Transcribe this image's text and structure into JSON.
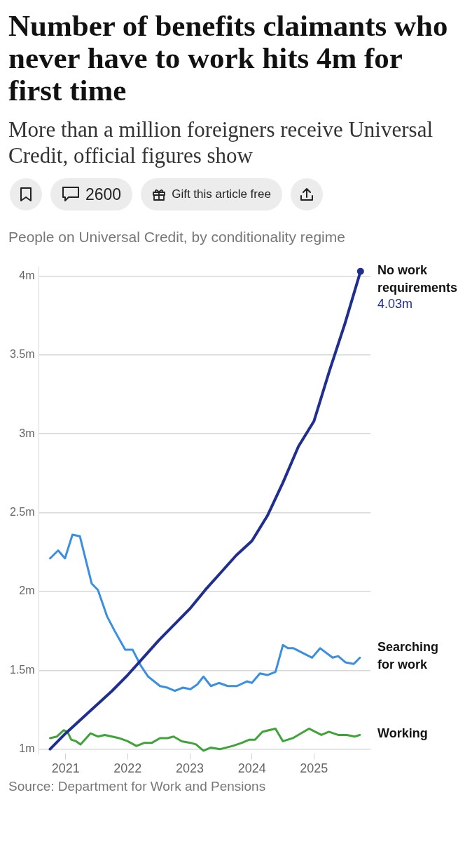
{
  "chart_data": {
    "type": "line",
    "title": "Number of benefits claimants who never have to work hits 4m for first time",
    "subtitle": "More than a million foreigners receive Universal Credit, official figures show",
    "annotations": [
      "2600",
      "Gift this article free",
      "People on Universal Credit, by conditionality regime",
      "Source: Department for Work and Pensions",
      {
        "text": "4.03m",
        "x": 2025.75,
        "y": 4.03
      }
    ],
    "series": [
      {
        "name": "No work requirements",
        "color": "#1f2e8f",
        "x": [
          2020.75,
          2021.0,
          2021.25,
          2021.5,
          2021.75,
          2022.0,
          2022.25,
          2022.5,
          2022.75,
          2023.0,
          2023.25,
          2023.5,
          2023.75,
          2024.0,
          2024.25,
          2024.5,
          2024.75,
          2025.0,
          2025.25,
          2025.5,
          2025.75
        ],
        "values": [
          1.0,
          1.1,
          1.19,
          1.28,
          1.37,
          1.47,
          1.58,
          1.69,
          1.79,
          1.89,
          2.01,
          2.12,
          2.23,
          2.32,
          2.48,
          2.69,
          2.92,
          3.08,
          3.4,
          3.7,
          4.03
        ]
      },
      {
        "name": "Searching for work",
        "color": "#3a8fe0",
        "x": [
          2020.75,
          2020.88,
          2020.99,
          2021.11,
          2021.23,
          2021.42,
          2021.52,
          2021.67,
          2021.79,
          2021.96,
          2022.08,
          2022.21,
          2022.33,
          2022.52,
          2022.64,
          2022.76,
          2022.89,
          2023.01,
          2023.12,
          2023.22,
          2023.34,
          2023.47,
          2023.61,
          2023.76,
          2023.92,
          2024.0,
          2024.13,
          2024.25,
          2024.38,
          2024.5,
          2024.58,
          2024.67,
          2024.97,
          2025.1,
          2025.3,
          2025.39,
          2025.51,
          2025.64,
          2025.74
        ],
        "values": [
          2.21,
          2.26,
          2.21,
          2.36,
          2.35,
          2.05,
          2.01,
          1.84,
          1.75,
          1.63,
          1.63,
          1.53,
          1.46,
          1.4,
          1.39,
          1.37,
          1.39,
          1.38,
          1.41,
          1.46,
          1.4,
          1.42,
          1.4,
          1.4,
          1.43,
          1.42,
          1.48,
          1.47,
          1.49,
          1.66,
          1.64,
          1.64,
          1.58,
          1.64,
          1.58,
          1.59,
          1.55,
          1.54,
          1.58
        ]
      },
      {
        "name": "Working",
        "color": "#3fa33a",
        "x": [
          2020.75,
          2020.86,
          2020.97,
          2021.03,
          2021.09,
          2021.17,
          2021.24,
          2021.4,
          2021.52,
          2021.63,
          2021.75,
          2021.86,
          2022.0,
          2022.14,
          2022.27,
          2022.39,
          2022.52,
          2022.64,
          2022.74,
          2022.87,
          2023.01,
          2023.1,
          2023.22,
          2023.34,
          2023.49,
          2023.69,
          2023.84,
          2023.96,
          2024.05,
          2024.17,
          2024.27,
          2024.38,
          2024.5,
          2024.66,
          2024.92,
          2025.12,
          2025.24,
          2025.39,
          2025.53,
          2025.66,
          2025.74
        ],
        "values": [
          1.07,
          1.08,
          1.12,
          1.11,
          1.06,
          1.05,
          1.03,
          1.1,
          1.08,
          1.09,
          1.08,
          1.07,
          1.05,
          1.02,
          1.04,
          1.04,
          1.07,
          1.07,
          1.08,
          1.05,
          1.04,
          1.03,
          0.99,
          1.01,
          1.0,
          1.02,
          1.04,
          1.06,
          1.06,
          1.11,
          1.12,
          1.13,
          1.05,
          1.07,
          1.13,
          1.09,
          1.11,
          1.09,
          1.09,
          1.08,
          1.09
        ]
      }
    ],
    "xlim": [
      2020.57,
      2025.91
    ],
    "xticks": [
      2021,
      2022,
      2023,
      2024,
      2025
    ],
    "ylim": [
      0.97,
      4.06
    ],
    "yticks": [
      {
        "value": 1,
        "label": "1m"
      },
      {
        "value": 1.5,
        "label": "1.5m"
      },
      {
        "value": 2,
        "label": "2m"
      },
      {
        "value": 2.5,
        "label": "2.5m"
      },
      {
        "value": 3,
        "label": "3m"
      },
      {
        "value": 3.5,
        "label": "3.5m"
      },
      {
        "value": 4,
        "label": "4m"
      }
    ],
    "grid": "y",
    "legend": false,
    "line_style": "solid"
  }
}
